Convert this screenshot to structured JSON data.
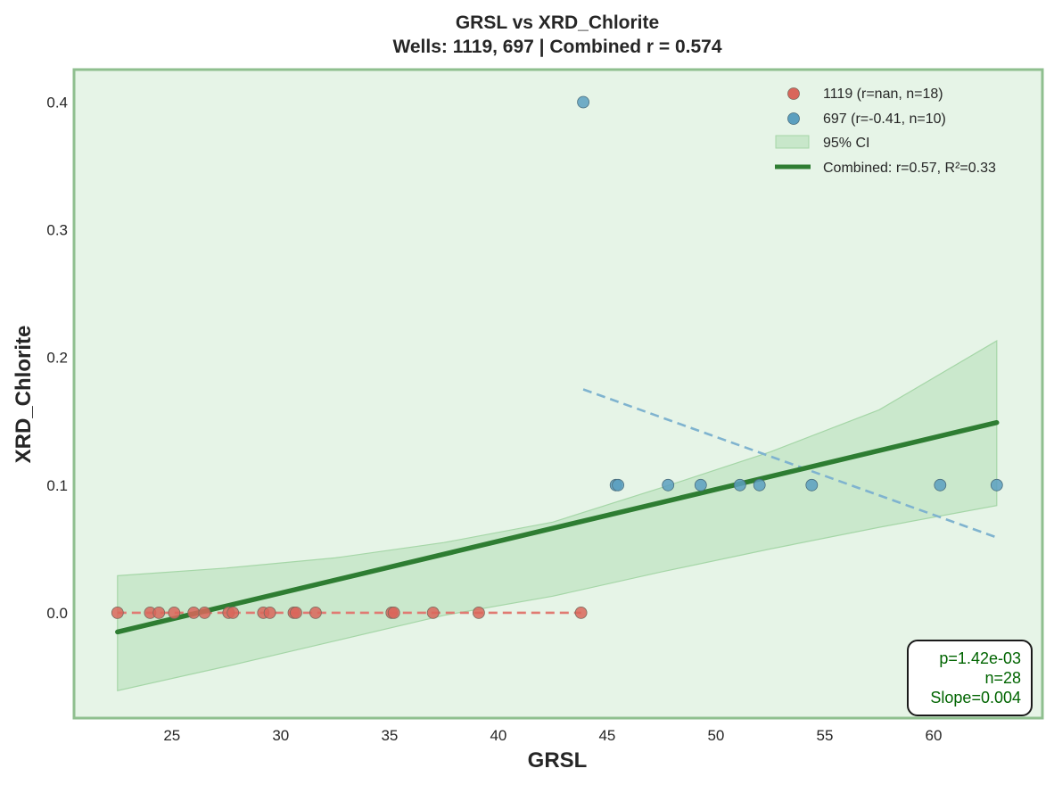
{
  "chart_data": {
    "type": "scatter",
    "title_line1": "GRSL vs XRD_Chlorite",
    "title_line2": "Wells: 1119, 697 | Combined r = 0.574",
    "xlabel": "GRSL",
    "ylabel": "XRD_Chlorite",
    "xlim": [
      20.5,
      65
    ],
    "ylim": [
      -0.0825,
      0.4255
    ],
    "xticks": [
      25,
      30,
      35,
      40,
      45,
      50,
      55,
      60
    ],
    "yticks": [
      0.0,
      0.1,
      0.2,
      0.3,
      0.4
    ],
    "xtick_labels": [
      "25",
      "30",
      "35",
      "40",
      "45",
      "50",
      "55",
      "60"
    ],
    "ytick_labels": [
      "0.0",
      "0.1",
      "0.2",
      "0.3",
      "0.4"
    ],
    "grid": false,
    "legend_position": "top-right",
    "colors": {
      "well_1119": "#d9665b",
      "well_697": "#5b9fbf",
      "combined_fit": "#2e7d32",
      "ci_band": "#a5d6a7",
      "plot_bg": "#e6f4e7",
      "plot_border": "#8fbf8f"
    },
    "series": [
      {
        "name": "1119",
        "legend_label": "1119 (r=nan, n=18)",
        "x": [
          22.5,
          24.0,
          24.4,
          25.1,
          26.0,
          26.5,
          27.6,
          27.8,
          29.2,
          29.5,
          30.6,
          30.7,
          31.6,
          35.1,
          35.2,
          37.0,
          39.1,
          43.8
        ],
        "y": [
          0,
          0,
          0,
          0,
          0,
          0,
          0,
          0,
          0,
          0,
          0,
          0,
          0,
          0,
          0,
          0,
          0,
          0
        ],
        "trend": {
          "x": [
            22.5,
            43.8
          ],
          "y": [
            0.0,
            0.0
          ]
        }
      },
      {
        "name": "697",
        "legend_label": "697 (r=-0.41, n=10)",
        "x": [
          43.9,
          45.4,
          45.5,
          47.8,
          49.3,
          51.1,
          52.0,
          54.4,
          60.3,
          62.9
        ],
        "y": [
          0.4,
          0.1,
          0.1,
          0.1,
          0.1,
          0.1,
          0.1,
          0.1,
          0.1,
          0.1
        ],
        "trend": {
          "x": [
            43.9,
            62.9
          ],
          "y": [
            0.175,
            0.059
          ]
        }
      }
    ],
    "combined_fit": {
      "legend_label": "Combined: r=0.57, R²=0.33",
      "x": [
        22.5,
        62.9
      ],
      "y": [
        -0.015,
        0.149
      ]
    },
    "confidence_band": {
      "legend_label": "95% CI",
      "x": [
        22.5,
        27.5,
        32.5,
        37.5,
        42.5,
        47.5,
        52.5,
        57.5,
        62.9
      ],
      "upper": [
        0.029,
        0.035,
        0.043,
        0.055,
        0.071,
        0.098,
        0.126,
        0.159,
        0.213
      ],
      "lower": [
        -0.061,
        -0.042,
        -0.022,
        -0.002,
        0.013,
        0.032,
        0.05,
        0.067,
        0.084
      ]
    },
    "stats_box": {
      "p": "p=1.42e-03",
      "n": "n=28",
      "slope": "Slope=0.004"
    }
  }
}
